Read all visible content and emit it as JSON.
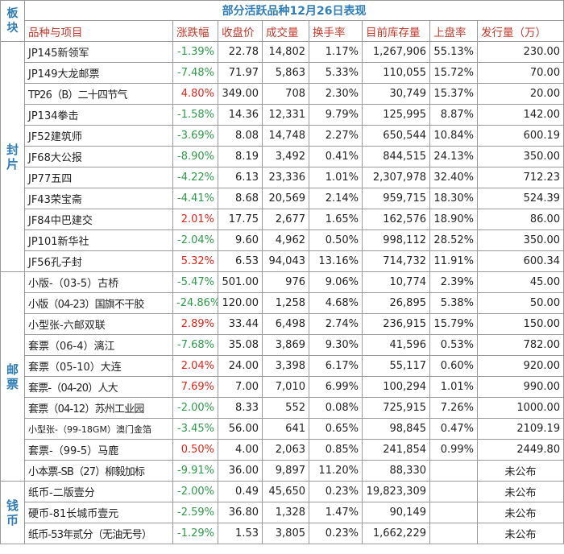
{
  "title": "部分活跃品种12月26日表现",
  "block_header": "板块",
  "columns": [
    "品种与项目",
    "涨跌幅",
    "收盘价",
    "成交量",
    "换手率",
    "目前库存量",
    "上盘率",
    "发行量（万）"
  ],
  "sectors": [
    {
      "name": "封片",
      "rows": [
        {
          "name": "JP145新领军",
          "change": "-1.39%",
          "close": "22.78",
          "volume": "14,802",
          "turnover": "1.17%",
          "stock": "1,267,906",
          "listing": "55.13%",
          "issue": "230.00"
        },
        {
          "name": "JP149大龙邮票",
          "change": "-7.48%",
          "close": "71.97",
          "volume": "5,863",
          "turnover": "5.33%",
          "stock": "110,055",
          "listing": "15.72%",
          "issue": "70.00"
        },
        {
          "name": "TP26（B）二十四节气",
          "change": "4.80%",
          "close": "349.00",
          "volume": "708",
          "turnover": "2.30%",
          "stock": "30,749",
          "listing": "15.37%",
          "issue": "20.00"
        },
        {
          "name": "JP134拳击",
          "change": "-1.58%",
          "close": "14.36",
          "volume": "12,331",
          "turnover": "9.79%",
          "stock": "125,995",
          "listing": "8.87%",
          "issue": "142.00"
        },
        {
          "name": "JF52建筑师",
          "change": "-3.69%",
          "close": "8.08",
          "volume": "14,748",
          "turnover": "2.27%",
          "stock": "650,544",
          "listing": "10.84%",
          "issue": "600.19"
        },
        {
          "name": "JF68大公报",
          "change": "-8.90%",
          "close": "8.19",
          "volume": "3,492",
          "turnover": "0.41%",
          "stock": "844,515",
          "listing": "24.13%",
          "issue": "350.00"
        },
        {
          "name": "JP77五四",
          "change": "-4.22%",
          "close": "6.13",
          "volume": "23,336",
          "turnover": "1.01%",
          "stock": "2,307,978",
          "listing": "32.40%",
          "issue": "712.23"
        },
        {
          "name": "JF43荣宝斋",
          "change": "-4.41%",
          "close": "8.68",
          "volume": "20,569",
          "turnover": "2.14%",
          "stock": "959,715",
          "listing": "18.30%",
          "issue": "524.39"
        },
        {
          "name": "JF84中巴建交",
          "change": "2.01%",
          "close": "17.75",
          "volume": "2,677",
          "turnover": "1.65%",
          "stock": "162,576",
          "listing": "18.90%",
          "issue": "86.00"
        },
        {
          "name": "JP101新华社",
          "change": "-2.04%",
          "close": "9.60",
          "volume": "4,962",
          "turnover": "0.50%",
          "stock": "998,112",
          "listing": "28.52%",
          "issue": "350.00"
        },
        {
          "name": "JF56孔子封",
          "change": "5.32%",
          "close": "6.53",
          "volume": "94,043",
          "turnover": "13.16%",
          "stock": "714,732",
          "listing": "11.91%",
          "issue": "600.34"
        }
      ]
    },
    {
      "name": "邮票",
      "rows": [
        {
          "name": "小版-（03-5）古桥",
          "change": "-5.47%",
          "close": "501.00",
          "volume": "976",
          "turnover": "9.06%",
          "stock": "10,774",
          "listing": "2.39%",
          "issue": "45.00"
        },
        {
          "name": "小版（04-23）国旗不干胶",
          "change": "-24.86%",
          "close": "120.00",
          "volume": "1,258",
          "turnover": "4.68%",
          "stock": "26,895",
          "listing": "5.38%",
          "issue": "50.00"
        },
        {
          "name": "小型张-六邮双联",
          "change": "2.89%",
          "close": "33.44",
          "volume": "6,498",
          "turnover": "2.74%",
          "stock": "236,915",
          "listing": "15.79%",
          "issue": "150.00"
        },
        {
          "name": "套票（06-4）漓江",
          "change": "-7.68%",
          "close": "35.08",
          "volume": "3,869",
          "turnover": "9.30%",
          "stock": "41,596",
          "listing": "0.53%",
          "issue": "782.00"
        },
        {
          "name": "套票（05-10）大连",
          "change": "2.04%",
          "close": "24.00",
          "volume": "3,398",
          "turnover": "6.17%",
          "stock": "55,117",
          "listing": "0.60%",
          "issue": "920.00"
        },
        {
          "name": "套票-（04-20）人大",
          "change": "7.69%",
          "close": "7.00",
          "volume": "7,010",
          "turnover": "6.99%",
          "stock": "100,294",
          "listing": "1.01%",
          "issue": "990.00"
        },
        {
          "name": "套票（04-12）苏州工业园",
          "change": "-2.00%",
          "close": "8.33",
          "volume": "552",
          "turnover": "0.08%",
          "stock": "725,915",
          "listing": "7.26%",
          "issue": "1000.00"
        },
        {
          "name": "小型张-（99-18GM）澳门金箔",
          "change": "-3.45%",
          "close": "56.00",
          "volume": "641",
          "turnover": "0.65%",
          "stock": "98,845",
          "listing": "0.47%",
          "issue": "2109.19"
        },
        {
          "name": "套票-（99-5）马鹿",
          "change": "0.50%",
          "close": "4.00",
          "volume": "2,063",
          "turnover": "0.85%",
          "stock": "241,854",
          "listing": "0.99%",
          "issue": "2449.80"
        },
        {
          "name": "小本票-SB（27）柳毅加标",
          "change": "-9.91%",
          "close": "36.00",
          "volume": "9,897",
          "turnover": "11.20%",
          "stock": "88,330",
          "listing": "",
          "issue": "未公布"
        }
      ]
    },
    {
      "name": "钱币",
      "rows": [
        {
          "name": "纸币-二版壹分",
          "change": "-2.00%",
          "close": "0.49",
          "volume": "45,650",
          "turnover": "0.23%",
          "stock": "19,823,309",
          "listing": "",
          "issue": "未公布"
        },
        {
          "name": "硬币-81长城币壹元",
          "change": "-2.59%",
          "close": "36.80",
          "volume": "1,328",
          "turnover": "1.47%",
          "stock": "90,149",
          "listing": "",
          "issue": "未公布"
        },
        {
          "name": "纸币-53年贰分（无油无号）",
          "change": "-1.29%",
          "close": "1.53",
          "volume": "3,805",
          "turnover": "0.23%",
          "stock": "1,662,229",
          "listing": "",
          "issue": "未公布"
        }
      ]
    }
  ],
  "colors": {
    "up": "#e0261b",
    "down": "#2e9a4a",
    "header": "#c0392b",
    "accent": "#2f7db8"
  }
}
